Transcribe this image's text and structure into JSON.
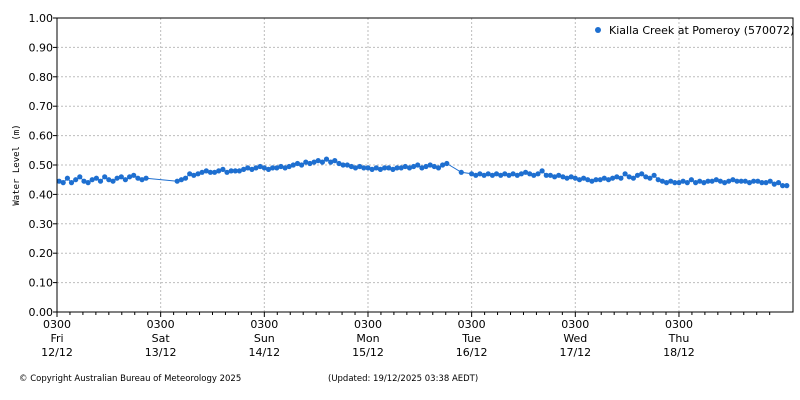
{
  "chart_data": {
    "type": "scatter",
    "title": "",
    "ylabel": "Water Level (m)",
    "xlabel": "",
    "ylim": [
      0,
      1.0
    ],
    "yticks": [
      0.0,
      0.1,
      0.2,
      0.3,
      0.4,
      0.5,
      0.6,
      0.7,
      0.8,
      0.9,
      1.0
    ],
    "ytick_labels": [
      "0.00",
      "0.10",
      "0.20",
      "0.30",
      "0.40",
      "0.50",
      "0.60",
      "0.70",
      "0.80",
      "0.90",
      "1.00"
    ],
    "xlim_days": [
      0,
      7.1
    ],
    "xticks": [
      {
        "day": 0,
        "time": "0300",
        "weekday": "Fri",
        "date": "12/12"
      },
      {
        "day": 1,
        "time": "0300",
        "weekday": "Sat",
        "date": "13/12"
      },
      {
        "day": 2,
        "time": "0300",
        "weekday": "Sun",
        "date": "14/12"
      },
      {
        "day": 3,
        "time": "0300",
        "weekday": "Mon",
        "date": "15/12"
      },
      {
        "day": 4,
        "time": "0300",
        "weekday": "Tue",
        "date": "16/12"
      },
      {
        "day": 5,
        "time": "0300",
        "weekday": "Wed",
        "date": "17/12"
      },
      {
        "day": 6,
        "time": "0300",
        "weekday": "Thu",
        "date": "18/12"
      }
    ],
    "grid": true,
    "legend_position": "top-right",
    "series": [
      {
        "name": "Kialla Creek at Pomeroy (570072)",
        "color": "#1e6fd0",
        "points": [
          [
            0.02,
            0.445
          ],
          [
            0.06,
            0.44
          ],
          [
            0.1,
            0.455
          ],
          [
            0.14,
            0.44
          ],
          [
            0.18,
            0.45
          ],
          [
            0.22,
            0.46
          ],
          [
            0.26,
            0.445
          ],
          [
            0.3,
            0.44
          ],
          [
            0.34,
            0.45
          ],
          [
            0.38,
            0.455
          ],
          [
            0.42,
            0.445
          ],
          [
            0.46,
            0.46
          ],
          [
            0.5,
            0.45
          ],
          [
            0.54,
            0.445
          ],
          [
            0.58,
            0.455
          ],
          [
            0.62,
            0.46
          ],
          [
            0.66,
            0.45
          ],
          [
            0.7,
            0.46
          ],
          [
            0.74,
            0.465
          ],
          [
            0.78,
            0.455
          ],
          [
            0.82,
            0.45
          ],
          [
            0.86,
            0.455
          ],
          [
            1.16,
            0.445
          ],
          [
            1.2,
            0.45
          ],
          [
            1.24,
            0.455
          ],
          [
            1.28,
            0.47
          ],
          [
            1.32,
            0.465
          ],
          [
            1.36,
            0.47
          ],
          [
            1.4,
            0.475
          ],
          [
            1.44,
            0.48
          ],
          [
            1.48,
            0.475
          ],
          [
            1.52,
            0.475
          ],
          [
            1.56,
            0.48
          ],
          [
            1.6,
            0.485
          ],
          [
            1.64,
            0.475
          ],
          [
            1.68,
            0.48
          ],
          [
            1.72,
            0.48
          ],
          [
            1.76,
            0.48
          ],
          [
            1.8,
            0.485
          ],
          [
            1.84,
            0.49
          ],
          [
            1.88,
            0.485
          ],
          [
            1.92,
            0.49
          ],
          [
            1.96,
            0.495
          ],
          [
            2.0,
            0.49
          ],
          [
            2.04,
            0.485
          ],
          [
            2.08,
            0.49
          ],
          [
            2.12,
            0.49
          ],
          [
            2.16,
            0.495
          ],
          [
            2.2,
            0.49
          ],
          [
            2.24,
            0.495
          ],
          [
            2.28,
            0.5
          ],
          [
            2.32,
            0.505
          ],
          [
            2.36,
            0.5
          ],
          [
            2.4,
            0.51
          ],
          [
            2.44,
            0.505
          ],
          [
            2.48,
            0.51
          ],
          [
            2.52,
            0.515
          ],
          [
            2.56,
            0.51
          ],
          [
            2.6,
            0.52
          ],
          [
            2.64,
            0.51
          ],
          [
            2.68,
            0.515
          ],
          [
            2.72,
            0.505
          ],
          [
            2.76,
            0.5
          ],
          [
            2.8,
            0.5
          ],
          [
            2.84,
            0.495
          ],
          [
            2.88,
            0.49
          ],
          [
            2.92,
            0.495
          ],
          [
            2.96,
            0.49
          ],
          [
            3.0,
            0.49
          ],
          [
            3.04,
            0.485
          ],
          [
            3.08,
            0.49
          ],
          [
            3.12,
            0.485
          ],
          [
            3.16,
            0.49
          ],
          [
            3.2,
            0.49
          ],
          [
            3.24,
            0.485
          ],
          [
            3.28,
            0.49
          ],
          [
            3.32,
            0.49
          ],
          [
            3.36,
            0.495
          ],
          [
            3.4,
            0.49
          ],
          [
            3.44,
            0.495
          ],
          [
            3.48,
            0.5
          ],
          [
            3.52,
            0.49
          ],
          [
            3.56,
            0.495
          ],
          [
            3.6,
            0.5
          ],
          [
            3.64,
            0.495
          ],
          [
            3.68,
            0.49
          ],
          [
            3.72,
            0.5
          ],
          [
            3.76,
            0.505
          ],
          [
            3.9,
            0.475
          ],
          [
            4.0,
            0.47
          ],
          [
            4.04,
            0.465
          ],
          [
            4.08,
            0.47
          ],
          [
            4.12,
            0.465
          ],
          [
            4.16,
            0.47
          ],
          [
            4.2,
            0.465
          ],
          [
            4.24,
            0.47
          ],
          [
            4.28,
            0.465
          ],
          [
            4.32,
            0.47
          ],
          [
            4.36,
            0.465
          ],
          [
            4.4,
            0.47
          ],
          [
            4.44,
            0.465
          ],
          [
            4.48,
            0.47
          ],
          [
            4.52,
            0.475
          ],
          [
            4.56,
            0.47
          ],
          [
            4.6,
            0.465
          ],
          [
            4.64,
            0.47
          ],
          [
            4.68,
            0.48
          ],
          [
            4.72,
            0.465
          ],
          [
            4.76,
            0.465
          ],
          [
            4.8,
            0.46
          ],
          [
            4.84,
            0.465
          ],
          [
            4.88,
            0.46
          ],
          [
            4.92,
            0.455
          ],
          [
            4.96,
            0.46
          ],
          [
            5.0,
            0.455
          ],
          [
            5.04,
            0.45
          ],
          [
            5.08,
            0.455
          ],
          [
            5.12,
            0.45
          ],
          [
            5.16,
            0.445
          ],
          [
            5.2,
            0.45
          ],
          [
            5.24,
            0.45
          ],
          [
            5.28,
            0.455
          ],
          [
            5.32,
            0.45
          ],
          [
            5.36,
            0.455
          ],
          [
            5.4,
            0.46
          ],
          [
            5.44,
            0.455
          ],
          [
            5.48,
            0.47
          ],
          [
            5.52,
            0.46
          ],
          [
            5.56,
            0.455
          ],
          [
            5.6,
            0.465
          ],
          [
            5.64,
            0.47
          ],
          [
            5.68,
            0.46
          ],
          [
            5.72,
            0.455
          ],
          [
            5.76,
            0.465
          ],
          [
            5.8,
            0.45
          ],
          [
            5.84,
            0.445
          ],
          [
            5.88,
            0.44
          ],
          [
            5.92,
            0.445
          ],
          [
            5.96,
            0.44
          ],
          [
            6.0,
            0.44
          ],
          [
            6.04,
            0.445
          ],
          [
            6.08,
            0.44
          ],
          [
            6.12,
            0.45
          ],
          [
            6.16,
            0.44
          ],
          [
            6.2,
            0.445
          ],
          [
            6.24,
            0.44
          ],
          [
            6.28,
            0.445
          ],
          [
            6.32,
            0.445
          ],
          [
            6.36,
            0.45
          ],
          [
            6.4,
            0.445
          ],
          [
            6.44,
            0.44
          ],
          [
            6.48,
            0.445
          ],
          [
            6.52,
            0.45
          ],
          [
            6.56,
            0.445
          ],
          [
            6.6,
            0.445
          ],
          [
            6.64,
            0.445
          ],
          [
            6.68,
            0.44
          ],
          [
            6.72,
            0.445
          ],
          [
            6.76,
            0.445
          ],
          [
            6.8,
            0.44
          ],
          [
            6.84,
            0.44
          ],
          [
            6.88,
            0.445
          ],
          [
            6.92,
            0.435
          ],
          [
            6.96,
            0.44
          ],
          [
            7.0,
            0.43
          ],
          [
            7.04,
            0.43
          ]
        ]
      }
    ]
  },
  "footer": {
    "copyright": "© Copyright Australian Bureau of Meteorology 2025",
    "updated": "(Updated: 19/12/2025 03:38 AEDT)"
  }
}
